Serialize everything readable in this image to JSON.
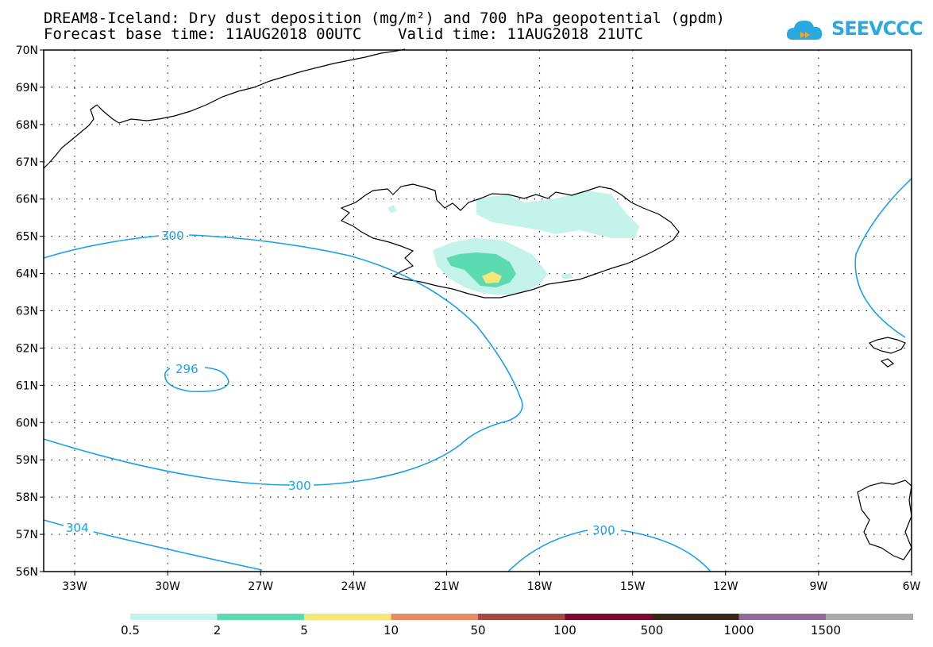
{
  "header": {
    "title_line1": "DREAM8-Iceland: Dry dust deposition (mg/m²) and 700 hPa geopotential (gpdm)",
    "title_line2": "Forecast base time: 11AUG2018 00UTC    Valid time: 11AUG2018 21UTC",
    "logo_text": "SEEVCCC"
  },
  "map": {
    "lat_labels": [
      "70N",
      "69N",
      "68N",
      "67N",
      "66N",
      "65N",
      "64N",
      "63N",
      "62N",
      "61N",
      "60N",
      "59N",
      "58N",
      "57N",
      "56N"
    ],
    "lon_labels": [
      "33W",
      "30W",
      "27W",
      "24W",
      "21W",
      "18W",
      "15W",
      "12W",
      "9W",
      "6W"
    ],
    "contour_labels": [
      "300",
      "296",
      "300",
      "304",
      "300"
    ],
    "contour_color": "#1aa0e8",
    "coast_color": "#000000",
    "grid_style": "dotted"
  },
  "colorbar": {
    "labels": [
      "0.5",
      "2",
      "5",
      "10",
      "50",
      "100",
      "500",
      "1000",
      "1500"
    ],
    "colors": [
      "#c4f3eb",
      "#5cdbb2",
      "#f5e878",
      "#e88a66",
      "#a04a42",
      "#7a0b2e",
      "#3a2416",
      "#8f6b9a",
      "#a8a8a8"
    ]
  }
}
